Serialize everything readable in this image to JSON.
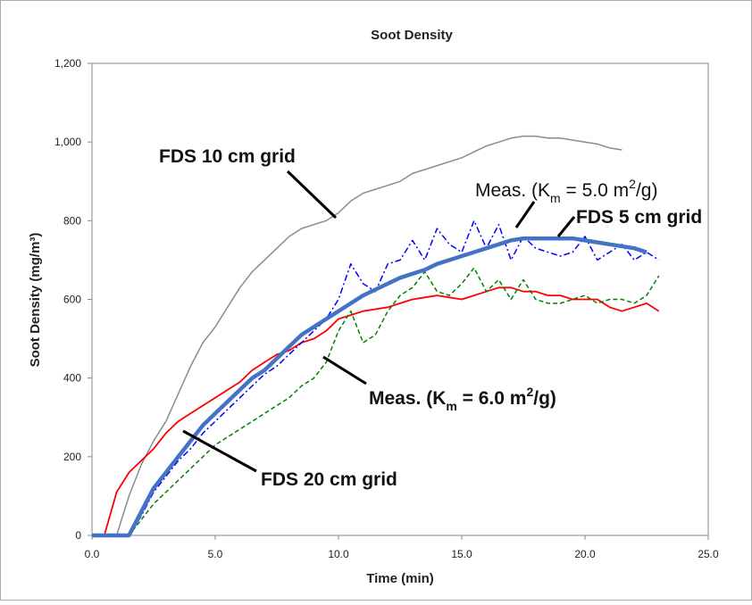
{
  "chart_data": {
    "type": "line",
    "title": "Soot Density",
    "xlabel": "Time (min)",
    "ylabel": "Soot Density (mg/m³)",
    "x": [
      0,
      0.5,
      1,
      1.5,
      2,
      2.5,
      3,
      3.5,
      4,
      4.5,
      5,
      5.5,
      6,
      6.5,
      7,
      7.5,
      8,
      8.5,
      9,
      9.5,
      10,
      10.5,
      11,
      11.5,
      12,
      12.5,
      13,
      13.5,
      14,
      14.5,
      15,
      15.5,
      16,
      16.5,
      17,
      17.5,
      18,
      18.5,
      19,
      19.5,
      20,
      20.5,
      21,
      21.5,
      22,
      22.5,
      23
    ],
    "series": [
      {
        "color": "#8c8c8c",
        "width": 1.5,
        "dash": "solid",
        "values": [
          0,
          0,
          0,
          100,
          180,
          240,
          290,
          360,
          430,
          490,
          530,
          580,
          630,
          670,
          700,
          730,
          760,
          780,
          790,
          800,
          820,
          850,
          870,
          880,
          890,
          900,
          920,
          930,
          940,
          950,
          960,
          975,
          990,
          1000,
          1010,
          1015,
          1015,
          1010,
          1010,
          1005,
          1000,
          995,
          985,
          980,
          null,
          null,
          null
        ]
      },
      {
        "color": "#ff0000",
        "width": 1.8,
        "dash": "solid",
        "values": [
          0,
          0,
          110,
          160,
          190,
          220,
          260,
          290,
          310,
          330,
          350,
          370,
          390,
          420,
          440,
          460,
          470,
          490,
          500,
          520,
          550,
          560,
          570,
          575,
          580,
          590,
          600,
          605,
          610,
          605,
          600,
          610,
          620,
          630,
          630,
          620,
          620,
          610,
          610,
          600,
          600,
          600,
          580,
          570,
          580,
          590,
          570
        ]
      },
      {
        "color": "#008000",
        "width": 1.5,
        "dash": "dashed",
        "values": [
          0,
          0,
          0,
          0,
          40,
          80,
          110,
          140,
          170,
          200,
          230,
          250,
          270,
          290,
          310,
          330,
          350,
          380,
          400,
          440,
          520,
          570,
          490,
          510,
          570,
          610,
          630,
          670,
          620,
          610,
          640,
          680,
          620,
          650,
          600,
          650,
          600,
          590,
          590,
          600,
          610,
          590,
          600,
          600,
          590,
          610,
          660
        ]
      },
      {
        "color": "#0000ff",
        "width": 1.5,
        "dash": "dashdot",
        "values": [
          0,
          0,
          0,
          0,
          50,
          110,
          150,
          190,
          220,
          260,
          290,
          320,
          350,
          380,
          410,
          430,
          460,
          490,
          520,
          550,
          600,
          690,
          640,
          620,
          690,
          700,
          750,
          700,
          780,
          740,
          720,
          800,
          730,
          790,
          700,
          760,
          730,
          720,
          710,
          720,
          760,
          700,
          720,
          740,
          700,
          720,
          700
        ]
      },
      {
        "color": "#4472c4",
        "width": 4.5,
        "dash": "solid",
        "values": [
          0,
          0,
          0,
          0,
          60,
          120,
          160,
          200,
          240,
          280,
          310,
          340,
          370,
          400,
          420,
          450,
          480,
          510,
          530,
          550,
          570,
          590,
          610,
          625,
          640,
          655,
          665,
          675,
          690,
          700,
          710,
          720,
          730,
          740,
          750,
          755,
          755,
          755,
          755,
          755,
          750,
          745,
          740,
          735,
          730,
          720,
          null
        ]
      }
    ],
    "xlim": [
      0,
      25
    ],
    "xticks": [
      {
        "value": 0,
        "label": "0.0"
      },
      {
        "value": 5,
        "label": "5.0"
      },
      {
        "value": 10,
        "label": "10.0"
      },
      {
        "value": 15,
        "label": "15.0"
      },
      {
        "value": 20,
        "label": "20.0"
      },
      {
        "value": 25,
        "label": "25.0"
      }
    ],
    "ylim": [
      0,
      1200
    ],
    "yticks": [
      0,
      200,
      400,
      600,
      800,
      {
        "value": 1000,
        "label": "1,000"
      },
      {
        "value": 1200,
        "label": "1,200"
      }
    ],
    "grid": false,
    "annotations": [
      {
        "text": "FDS 10 cm grid"
      },
      {
        "text": [
          "Meas. (K",
          "m",
          " = 5.0 m",
          "2",
          "/g)"
        ]
      },
      {
        "text": "FDS 5 cm grid"
      },
      {
        "text": [
          "Meas. (K",
          "m",
          " = 6.0 m",
          "2",
          "/g)"
        ]
      },
      {
        "text": "FDS 20 cm grid"
      }
    ]
  }
}
